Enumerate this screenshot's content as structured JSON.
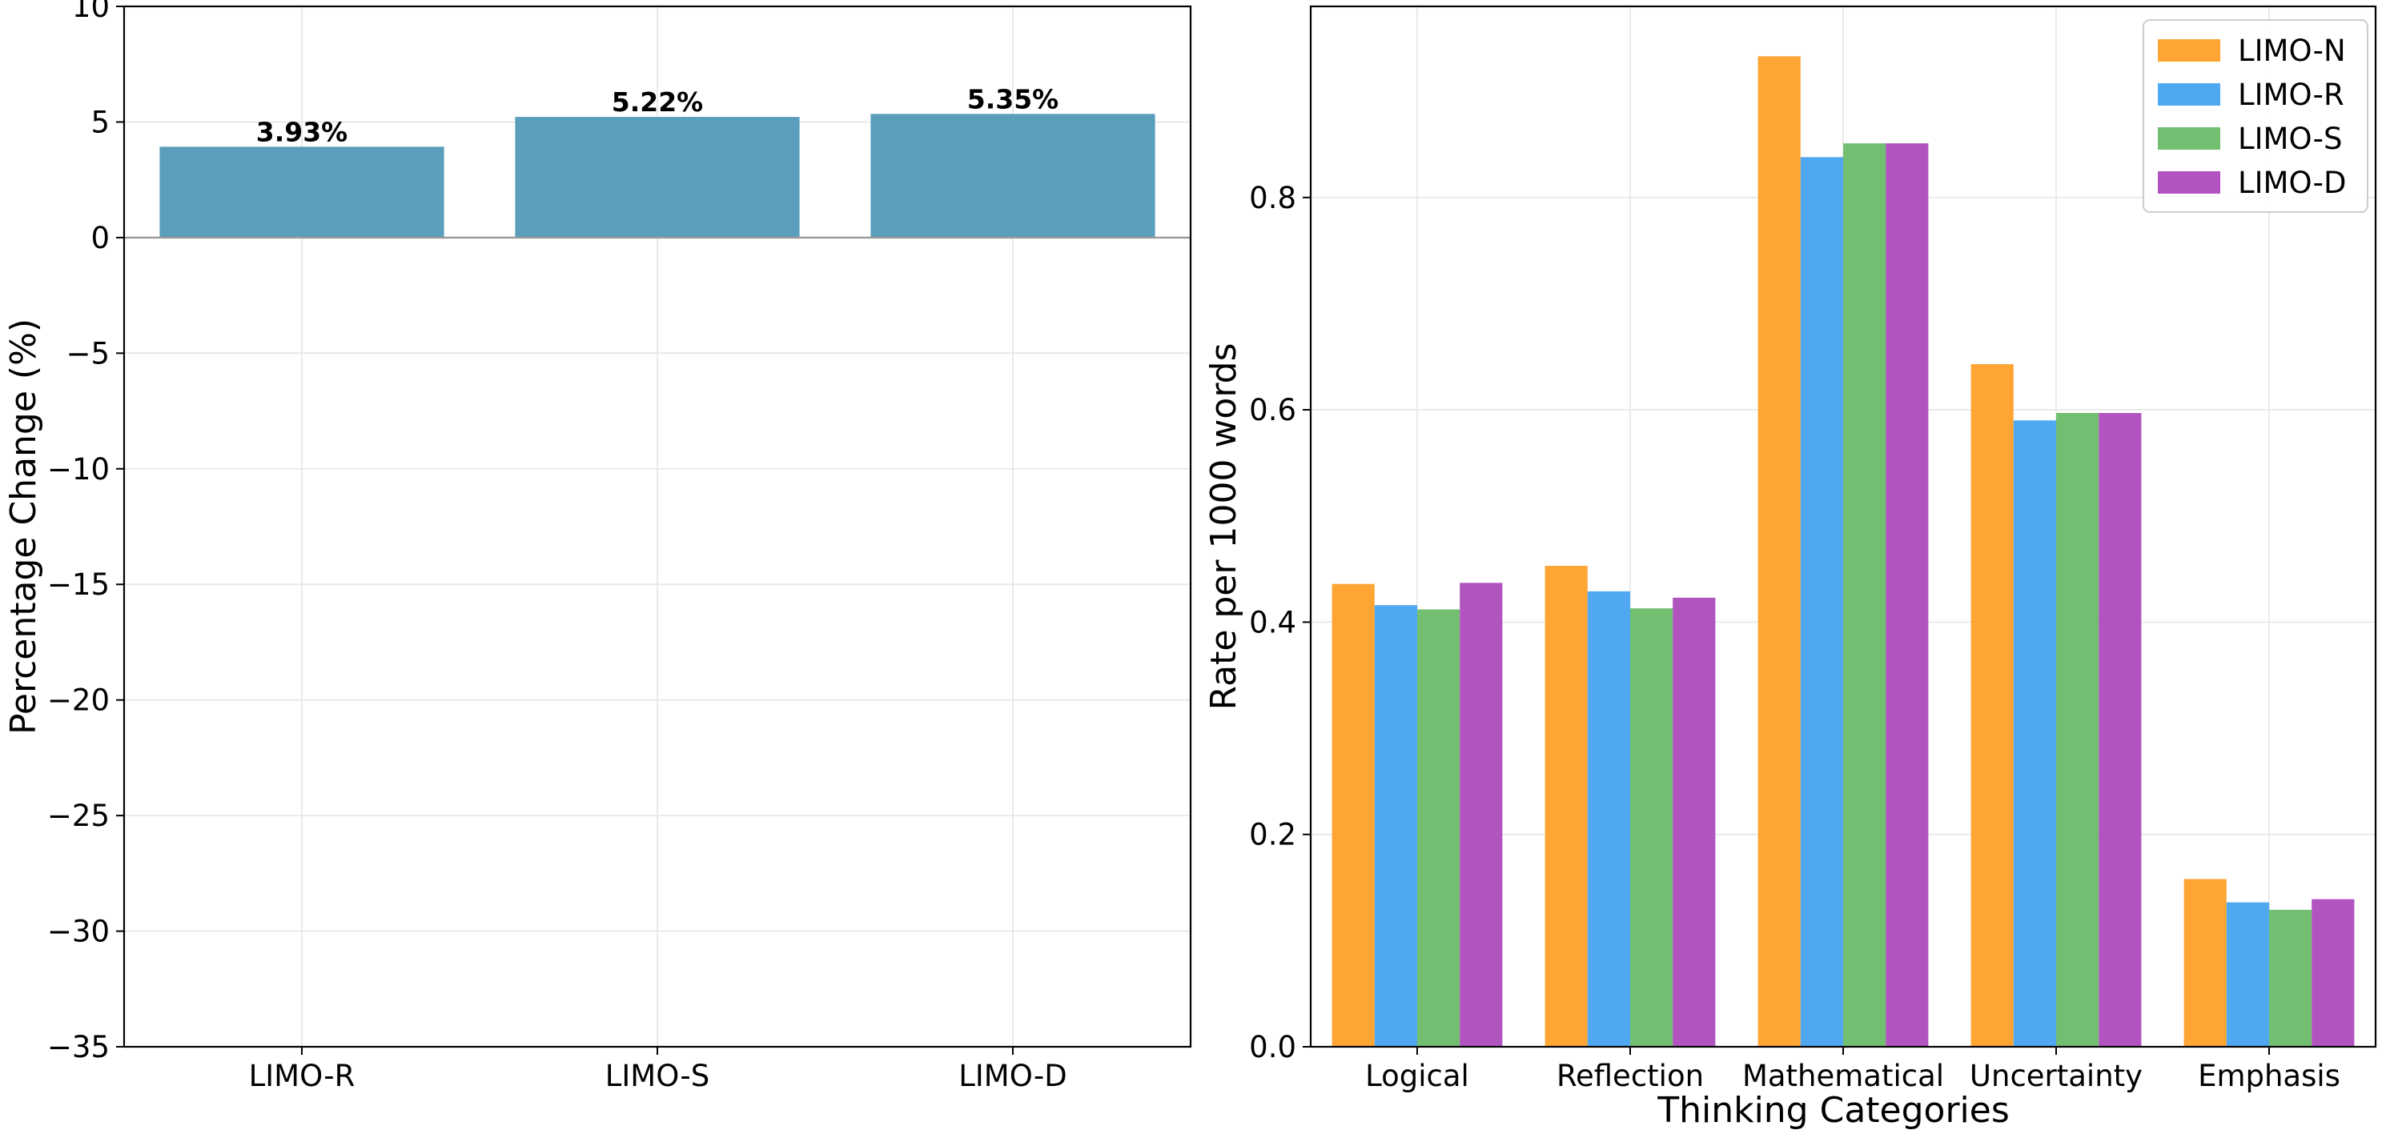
{
  "chart_data": [
    {
      "type": "bar",
      "title": "",
      "xlabel": "",
      "ylabel": "Percentage Change (%)",
      "categories": [
        "LIMO-R",
        "LIMO-S",
        "LIMO-D"
      ],
      "values": [
        3.93,
        5.22,
        5.35
      ],
      "data_labels": [
        "3.93%",
        "5.22%",
        "5.35%"
      ],
      "ylim": [
        -35,
        10
      ],
      "yticks": [
        10,
        5,
        0,
        -5,
        -10,
        -15,
        -20,
        -25,
        -30,
        -35
      ],
      "ytick_labels": [
        "10",
        "5",
        "0",
        "−5",
        "−10",
        "−15",
        "−20",
        "−25",
        "−30",
        "−35"
      ],
      "color": "#5a9ebb",
      "grid": true
    },
    {
      "type": "bar",
      "title": "",
      "xlabel": "Thinking Categories",
      "ylabel": "Rate per 1000 words",
      "categories": [
        "Logical",
        "Reflection",
        "Mathematical",
        "Uncertainty",
        "Emphasis"
      ],
      "series": [
        {
          "name": "LIMO-N",
          "color": "#ffa533",
          "values": [
            0.436,
            0.453,
            0.933,
            0.643,
            0.158
          ]
        },
        {
          "name": "LIMO-R",
          "color": "#4fa8f0",
          "values": [
            0.416,
            0.429,
            0.838,
            0.59,
            0.136
          ]
        },
        {
          "name": "LIMO-S",
          "color": "#72bf72",
          "values": [
            0.412,
            0.413,
            0.851,
            0.597,
            0.129
          ]
        },
        {
          "name": "LIMO-D",
          "color": "#b154c0",
          "values": [
            0.437,
            0.423,
            0.851,
            0.597,
            0.139
          ]
        }
      ],
      "ylim": [
        0,
        0.98
      ],
      "yticks": [
        0.0,
        0.2,
        0.4,
        0.6,
        0.8
      ],
      "ytick_labels": [
        "0.0",
        "0.2",
        "0.4",
        "0.6",
        "0.8"
      ],
      "legend": "top-right",
      "grid": true
    }
  ]
}
